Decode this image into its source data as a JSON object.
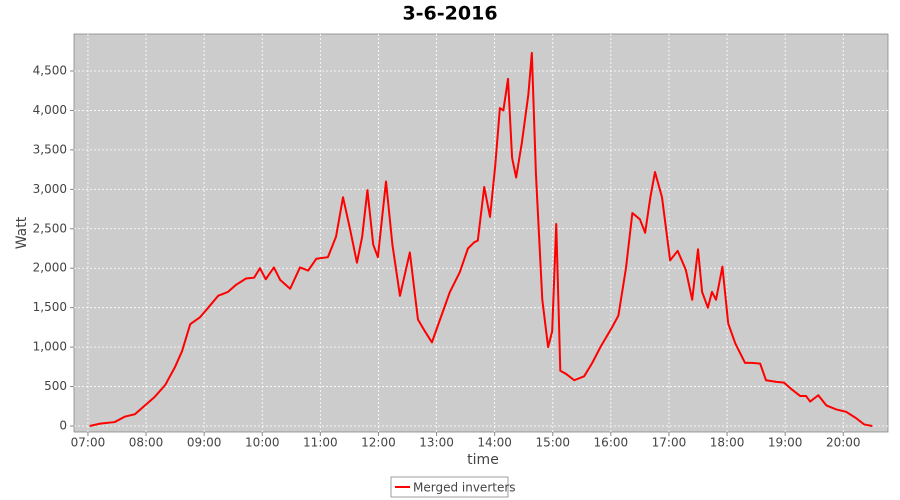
{
  "chart_data": {
    "type": "line",
    "title": "3-6-2016",
    "x_label": "time",
    "y_label": "Watt",
    "x": [
      7.03,
      7.21,
      7.46,
      7.64,
      7.81,
      7.98,
      8.15,
      8.33,
      8.5,
      8.62,
      8.76,
      8.93,
      9.07,
      9.24,
      9.41,
      9.55,
      9.72,
      9.86,
      9.96,
      10.06,
      10.2,
      10.31,
      10.48,
      10.65,
      10.79,
      10.93,
      11.13,
      11.27,
      11.39,
      11.51,
      11.63,
      11.72,
      11.81,
      11.91,
      11.99,
      12.13,
      12.24,
      12.37,
      12.54,
      12.68,
      12.8,
      12.92,
      13.06,
      13.23,
      13.4,
      13.54,
      13.65,
      13.71,
      13.82,
      13.92,
      14.01,
      14.09,
      14.15,
      14.23,
      14.3,
      14.37,
      14.47,
      14.58,
      14.64,
      14.71,
      14.82,
      14.92,
      14.99,
      15.06,
      15.13,
      15.23,
      15.37,
      15.54,
      15.68,
      15.82,
      16.02,
      16.13,
      16.26,
      16.37,
      16.5,
      16.59,
      16.68,
      16.76,
      16.88,
      17.02,
      17.15,
      17.29,
      17.4,
      17.5,
      17.57,
      17.67,
      17.74,
      17.81,
      17.92,
      18.02,
      18.14,
      18.31,
      18.43,
      18.57,
      18.67,
      18.85,
      18.98,
      19.12,
      19.26,
      19.36,
      19.43,
      19.57,
      19.71,
      19.88,
      20.05,
      20.22,
      20.36,
      20.5
    ],
    "series": [
      {
        "name": "Merged inverters",
        "color": "#ff0000",
        "values": [
          0,
          30,
          50,
          120,
          150,
          260,
          370,
          520,
          750,
          950,
          1290,
          1380,
          1500,
          1650,
          1700,
          1790,
          1870,
          1880,
          2000,
          1860,
          2010,
          1850,
          1740,
          2010,
          1970,
          2120,
          2140,
          2400,
          2900,
          2500,
          2070,
          2400,
          2990,
          2300,
          2140,
          3100,
          2300,
          1650,
          2200,
          1350,
          1200,
          1060,
          1350,
          1700,
          1950,
          2250,
          2330,
          2350,
          3030,
          2650,
          3300,
          4030,
          4000,
          4400,
          3400,
          3150,
          3600,
          4200,
          4730,
          3200,
          1600,
          1000,
          1200,
          2560,
          700,
          660,
          580,
          630,
          800,
          1000,
          1250,
          1400,
          2000,
          2700,
          2620,
          2450,
          2900,
          3220,
          2900,
          2100,
          2220,
          1980,
          1600,
          2240,
          1700,
          1500,
          1700,
          1600,
          2020,
          1300,
          1050,
          800,
          800,
          790,
          580,
          560,
          550,
          460,
          380,
          380,
          310,
          390,
          260,
          210,
          180,
          100,
          20,
          0
        ]
      }
    ],
    "xlim": [
      6.76,
      20.77
    ],
    "ylim": [
      -76,
      4969
    ],
    "xticks": [
      {
        "value": 7,
        "label": "07:00"
      },
      {
        "value": 8,
        "label": "08:00"
      },
      {
        "value": 9,
        "label": "09:00"
      },
      {
        "value": 10,
        "label": "10:00"
      },
      {
        "value": 11,
        "label": "11:00"
      },
      {
        "value": 12,
        "label": "12:00"
      },
      {
        "value": 13,
        "label": "13:00"
      },
      {
        "value": 14,
        "label": "14:00"
      },
      {
        "value": 15,
        "label": "15:00"
      },
      {
        "value": 16,
        "label": "16:00"
      },
      {
        "value": 17,
        "label": "17:00"
      },
      {
        "value": 18,
        "label": "18:00"
      },
      {
        "value": 19,
        "label": "19:00"
      },
      {
        "value": 20,
        "label": "20:00"
      }
    ],
    "yticks": [
      0,
      500,
      {
        "value": 1000,
        "label": "1,000"
      },
      {
        "value": 1500,
        "label": "1,500"
      },
      {
        "value": 2000,
        "label": "2,000"
      },
      {
        "value": 2500,
        "label": "2,500"
      },
      {
        "value": 3000,
        "label": "3,000"
      },
      {
        "value": 3500,
        "label": "3,500"
      },
      {
        "value": 4000,
        "label": "4,000"
      },
      {
        "value": 4500,
        "label": "4,500"
      }
    ],
    "grid": true,
    "legend": "bottom"
  }
}
